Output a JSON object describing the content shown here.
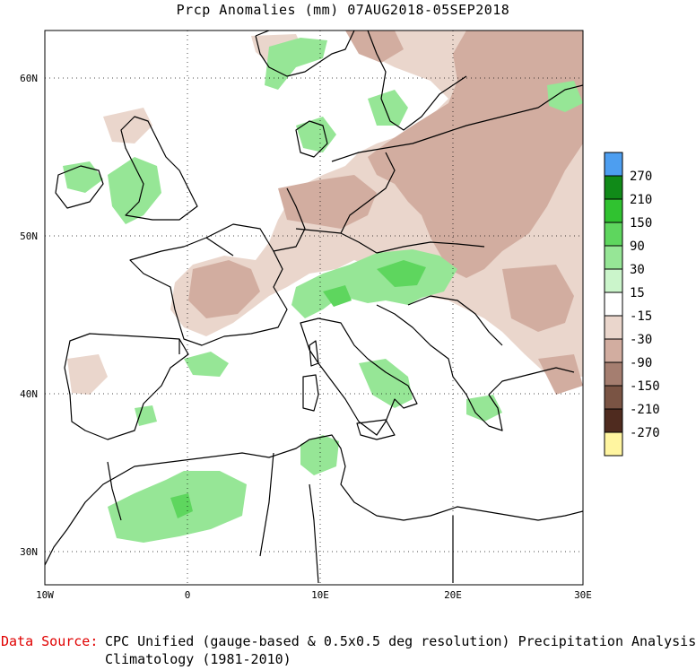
{
  "title": "Prcp Anomalies (mm) 07AUG2018-05SEP2018",
  "map": {
    "lon_range": [
      -10,
      30
    ],
    "lat_range": [
      28,
      63
    ],
    "lon_ticks": [
      {
        "value": -10,
        "label": "10W"
      },
      {
        "value": 0,
        "label": "0"
      },
      {
        "value": 10,
        "label": "10E"
      },
      {
        "value": 20,
        "label": "20E"
      },
      {
        "value": 30,
        "label": "30E"
      }
    ],
    "lat_ticks": [
      {
        "value": 30,
        "label": "30N"
      },
      {
        "value": 40,
        "label": "40N"
      },
      {
        "value": 50,
        "label": "50N"
      },
      {
        "value": 60,
        "label": "60N"
      }
    ],
    "grid": "dotted"
  },
  "legend": {
    "boxes": [
      {
        "color": "#4d9ef0",
        "label": "270"
      },
      {
        "color": "#108a18",
        "label": "210"
      },
      {
        "color": "#30c230",
        "label": "150"
      },
      {
        "color": "#5ed65e",
        "label": "90"
      },
      {
        "color": "#96e696",
        "label": "30"
      },
      {
        "color": "#cbf5cb",
        "label": "15"
      },
      {
        "color": "#ffffff",
        "label": "-15"
      },
      {
        "color": "#ead6cc",
        "label": "-30"
      },
      {
        "color": "#d2ada0",
        "label": "-90"
      },
      {
        "color": "#a57e70",
        "label": "-150"
      },
      {
        "color": "#7a5444",
        "label": "-210"
      },
      {
        "color": "#4f2b1f",
        "label": "-270"
      },
      {
        "color": "#fff5a0",
        "label": ""
      }
    ]
  },
  "footer": {
    "source_label": "Data Source:",
    "source_text": "CPC Unified (gauge-based & 0.5x0.5 deg resolution) Precipitation Analysis",
    "climatology_text": "Climatology (1981-2010)"
  }
}
